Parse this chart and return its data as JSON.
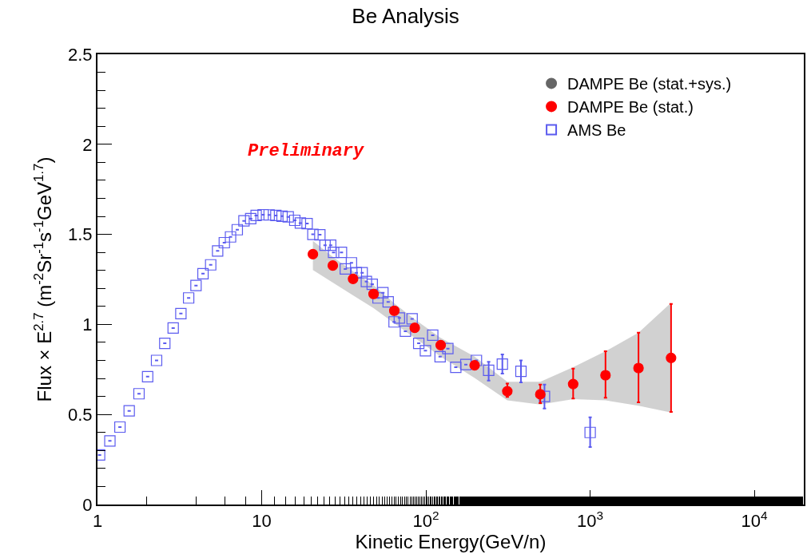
{
  "chart_data": {
    "type": "scatter",
    "title": "Be Analysis",
    "xlabel": "Kinetic Energy(GeV/n)",
    "ylabel": "Flux × E$^{2.7}$ (m$^{-2}$Sr$^{-1}$s$^{-1}$GeV$^{1.7}$)",
    "annotations": [
      "Preliminary"
    ],
    "log": "x",
    "grid": false,
    "legend": "top right",
    "xlim": [
      1,
      20000
    ],
    "xticks": [
      1,
      10,
      {
        "value": 100,
        "label": "10$^{2}$"
      },
      {
        "value": 1000,
        "label": "10$^{3}$"
      },
      {
        "value": 10000,
        "label": "10$^{4}$"
      }
    ],
    "ylim": [
      0,
      2.5
    ],
    "yticks": [
      0,
      0.5,
      1,
      1.5,
      2,
      2.5
    ],
    "series": [
      {
        "name": "AMS Be",
        "color": "#5b5bef",
        "marker": "square",
        "x": [
          1.03,
          1.19,
          1.37,
          1.56,
          1.79,
          2.02,
          2.29,
          2.57,
          2.89,
          3.22,
          3.59,
          3.98,
          4.39,
          4.89,
          5.39,
          5.92,
          6.46,
          7.1,
          7.8,
          8.57,
          9.25,
          10.2,
          11.1,
          12.2,
          13.3,
          14.5,
          15.9,
          17.2,
          18.9,
          20.5,
          22.6,
          24.3,
          26.3,
          27.4,
          30.6,
          32.3,
          35.2,
          37.7,
          40.9,
          43.4,
          47.1,
          51.1,
          54.7,
          58.9,
          64.0,
          68.9,
          75.0,
          82.4,
          90.4,
          99.3,
          110,
          122,
          136,
          152,
          175,
          203,
          241,
          292,
          379,
          527,
          1000
        ],
        "values": [
          0.275,
          0.353,
          0.43,
          0.52,
          0.615,
          0.71,
          0.8,
          0.895,
          0.98,
          1.06,
          1.147,
          1.216,
          1.282,
          1.331,
          1.408,
          1.454,
          1.486,
          1.526,
          1.575,
          1.587,
          1.605,
          1.609,
          1.608,
          1.605,
          1.601,
          1.597,
          1.578,
          1.563,
          1.56,
          1.5,
          1.498,
          1.44,
          1.44,
          1.4,
          1.4,
          1.308,
          1.342,
          1.287,
          1.287,
          1.238,
          1.223,
          1.147,
          1.176,
          1.125,
          1.014,
          1.036,
          0.962,
          1.031,
          0.895,
          0.854,
          0.94,
          0.821,
          0.866,
          0.762,
          0.777,
          0.8,
          0.745,
          0.78,
          0.74,
          0.6,
          0.4
        ],
        "errors": [
          null,
          null,
          null,
          null,
          null,
          null,
          null,
          null,
          null,
          null,
          null,
          null,
          null,
          null,
          null,
          null,
          null,
          null,
          null,
          null,
          null,
          null,
          null,
          null,
          null,
          null,
          null,
          null,
          null,
          null,
          null,
          null,
          null,
          null,
          null,
          null,
          null,
          null,
          null,
          null,
          null,
          null,
          null,
          null,
          null,
          null,
          null,
          null,
          null,
          null,
          null,
          null,
          null,
          null,
          null,
          null,
          [
            0.688,
            0.792
          ],
          [
            0.727,
            0.833
          ],
          [
            0.678,
            0.8
          ],
          [
            0.533,
            0.666
          ],
          [
            0.319,
            0.484
          ]
        ]
      },
      {
        "name": "DAMPE Be (stat.)",
        "color": "#ff0000",
        "marker": "circle",
        "x": [
          20.5,
          27.1,
          36.0,
          48.0,
          64.2,
          85.5,
          123,
          198,
          313,
          497,
          788,
          1240,
          1970,
          3110
        ],
        "values": [
          1.39,
          1.327,
          1.253,
          1.169,
          1.076,
          0.981,
          0.885,
          0.773,
          0.629,
          0.612,
          0.669,
          0.718,
          0.758,
          0.814
        ],
        "errors": [
          null,
          null,
          null,
          null,
          null,
          null,
          null,
          null,
          [
            0.597,
            0.671
          ],
          [
            0.563,
            0.666
          ],
          [
            0.588,
            0.755
          ],
          [
            0.593,
            0.851
          ],
          [
            0.567,
            0.954
          ],
          [
            0.514,
            1.114
          ]
        ]
      },
      {
        "name": "DAMPE Be (stat.+sys.)",
        "color": "#666666",
        "marker": "circle",
        "x": [
          20.5,
          27.1,
          36.0,
          48.0,
          64.2,
          85.5,
          123,
          198,
          313,
          497,
          788,
          1240,
          1970,
          3110
        ],
        "values": [
          null,
          null,
          null,
          null,
          null,
          null,
          null,
          null,
          null,
          null,
          null,
          null,
          null,
          null
        ],
        "lower": [
          1.302,
          1.232,
          1.161,
          1.09,
          1.006,
          0.925,
          0.821,
          0.703,
          0.578,
          0.555,
          0.585,
          0.578,
          0.548,
          0.511
        ],
        "upper": [
          1.464,
          1.375,
          1.294,
          1.218,
          1.117,
          1.028,
          0.925,
          0.821,
          0.681,
          0.681,
          0.762,
          0.851,
          0.954,
          1.12
        ]
      }
    ]
  }
}
